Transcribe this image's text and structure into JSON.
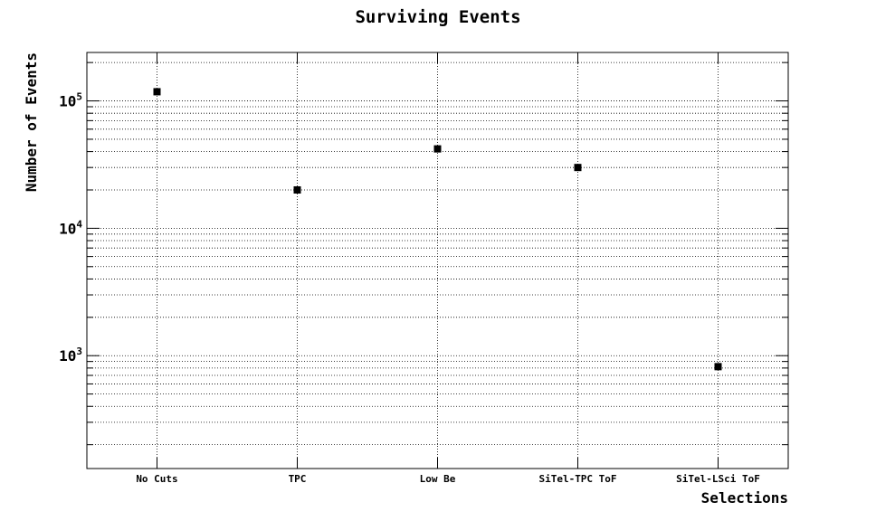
{
  "chart_data": {
    "type": "scatter",
    "title": "Surviving Events",
    "xlabel": "Selections",
    "ylabel": "Number of Events",
    "categories": [
      "No Cuts",
      "TPC",
      "Low Be",
      "SiTel-TPC ToF",
      "SiTel-LSci ToF"
    ],
    "values": [
      118000,
      20000,
      42000,
      30000,
      820
    ],
    "y_scale": "log",
    "ylim": [
      130,
      240000
    ],
    "y_ticks": [
      {
        "value": 1000,
        "base": "10",
        "exp": "3"
      },
      {
        "value": 10000,
        "base": "10",
        "exp": "4"
      },
      {
        "value": 100000,
        "base": "10",
        "exp": "5"
      }
    ],
    "grid": true,
    "marker": "square",
    "marker_color": "#000000"
  }
}
